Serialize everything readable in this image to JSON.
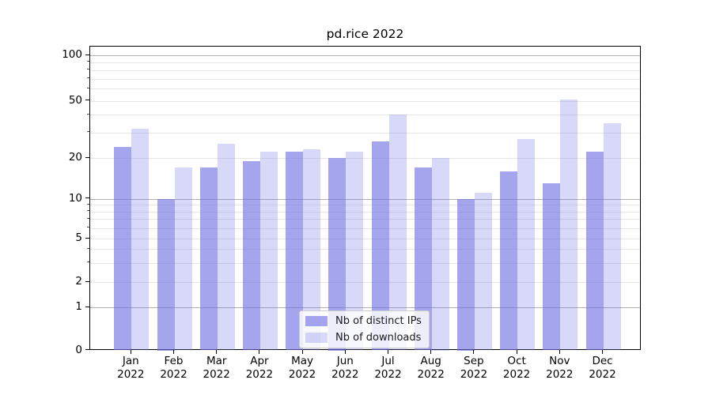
{
  "title": "pd.rice 2022",
  "chart_data": {
    "type": "bar",
    "title": "pd.rice 2022",
    "categories": [
      "Jan 2022",
      "Feb 2022",
      "Mar 2022",
      "Apr 2022",
      "May 2022",
      "Jun 2022",
      "Jul 2022",
      "Aug 2022",
      "Sep 2022",
      "Oct 2022",
      "Nov 2022",
      "Dec 2022"
    ],
    "x_tick_months": [
      "Jan",
      "Feb",
      "Mar",
      "Apr",
      "May",
      "Jun",
      "Jul",
      "Aug",
      "Sep",
      "Oct",
      "Nov",
      "Dec"
    ],
    "x_tick_year": "2022",
    "series": [
      {
        "name": "Nb of distinct IPs",
        "color": "rgba(110,110,228,0.62)",
        "values": [
          24,
          10,
          17,
          19,
          22,
          20,
          26,
          17,
          10,
          16,
          13,
          22
        ]
      },
      {
        "name": "Nb of downloads",
        "color": "rgba(110,110,228,0.27)",
        "values": [
          32,
          17,
          25,
          22,
          23,
          22,
          40,
          20,
          11,
          27,
          51,
          35
        ]
      }
    ],
    "yscale": "symlog",
    "yticks": [
      0,
      1,
      2,
      5,
      10,
      20,
      50,
      100
    ],
    "yticks_decade": [
      1,
      10,
      100
    ],
    "minor_yticks": [
      3,
      4,
      6,
      7,
      8,
      9,
      30,
      40,
      60,
      70,
      80,
      90
    ],
    "ylim": [
      0,
      116
    ],
    "grid": true,
    "legend_position": "lower center"
  },
  "colors": {
    "bar_base": "#6e6ee4",
    "grid_major": "#b0b0b0",
    "grid_minor": "#e7e7e7",
    "spine": "#000000",
    "background": "#ffffff"
  }
}
